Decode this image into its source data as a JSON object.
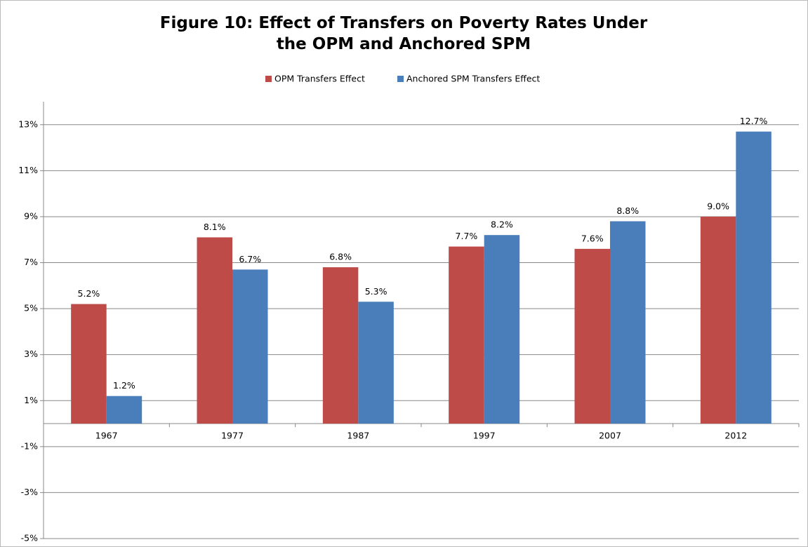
{
  "chart_data": {
    "type": "bar",
    "title": "Figure 10: Effect of Transfers on Poverty Rates Under the OPM and Anchored SPM",
    "categories": [
      "1967",
      "1977",
      "1987",
      "1997",
      "2007",
      "2012"
    ],
    "series": [
      {
        "name": "OPM Transfers Effect",
        "color": "#be4b48",
        "values": [
          5.2,
          8.1,
          6.8,
          7.7,
          7.6,
          9.0
        ],
        "value_labels": [
          "5.2%",
          "8.1%",
          "6.8%",
          "7.7%",
          "7.6%",
          "9.0%"
        ]
      },
      {
        "name": "Anchored SPM Transfers Effect",
        "color": "#4a7ebb",
        "values": [
          1.2,
          6.7,
          5.3,
          8.2,
          8.8,
          12.7
        ],
        "value_labels": [
          "1.2%",
          "6.7%",
          "5.3%",
          "8.2%",
          "8.8%",
          "12.7%"
        ]
      }
    ],
    "ylim": [
      -5,
      14
    ],
    "yticks": [
      {
        "value": -5,
        "label": "-5%"
      },
      {
        "value": -3,
        "label": "-3%"
      },
      {
        "value": -1,
        "label": "-1%"
      },
      {
        "value": 1,
        "label": "1%"
      },
      {
        "value": 3,
        "label": "3%"
      },
      {
        "value": 5,
        "label": "5%"
      },
      {
        "value": 7,
        "label": "7%"
      },
      {
        "value": 9,
        "label": "9%"
      },
      {
        "value": 11,
        "label": "11%"
      },
      {
        "value": 13,
        "label": "13%"
      }
    ],
    "grid": true,
    "legend": "top"
  }
}
